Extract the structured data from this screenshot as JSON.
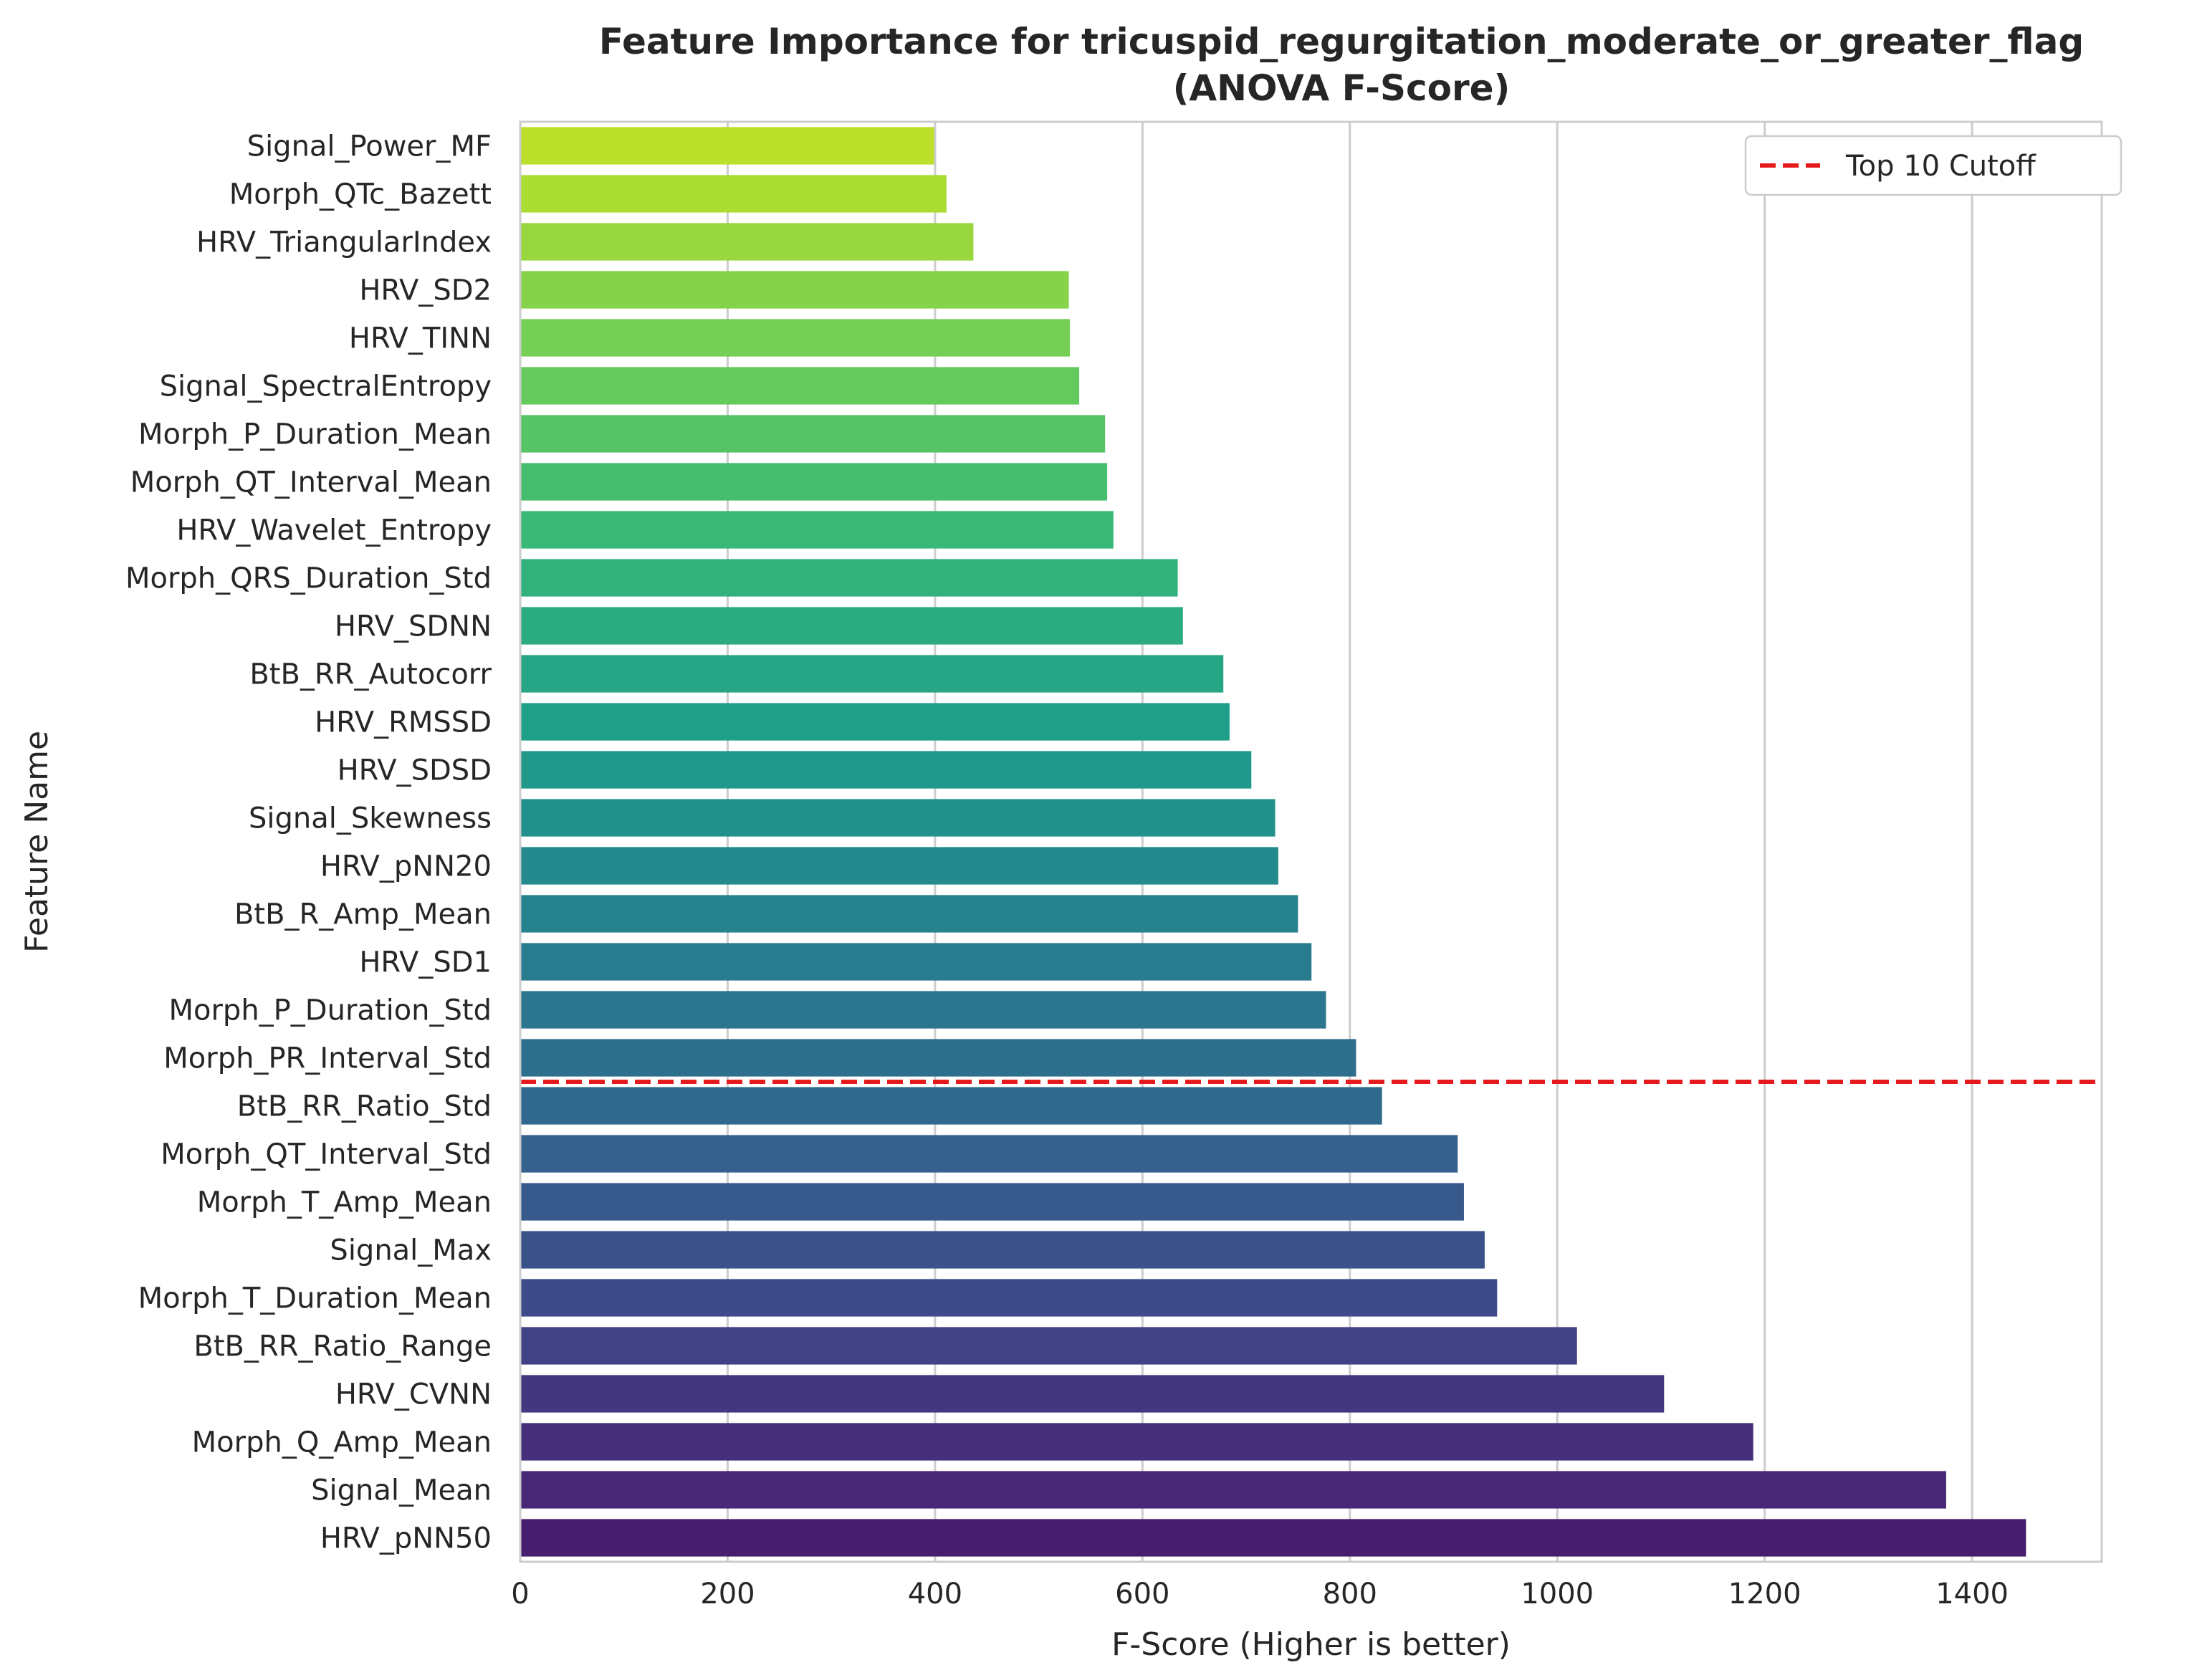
{
  "chart_data": {
    "type": "bar",
    "orientation": "horizontal",
    "title": "Feature Importance for tricuspid_regurgitation_moderate_or_greater_flag",
    "subtitle": "(ANOVA F-Score)",
    "xlabel": "F-Score (Higher is better)",
    "ylabel": "Feature Name",
    "xlim": [
      0,
      1525
    ],
    "xticks": [
      0,
      200,
      400,
      600,
      800,
      1000,
      1200,
      1400
    ],
    "grid": "x",
    "legend": {
      "position": "top-right",
      "entries": [
        "Top 10 Cutoff"
      ]
    },
    "colormap": "viridis",
    "cutoff_line": {
      "label": "Top 10 Cutoff",
      "color": "#e41a1c",
      "between": [
        "Morph_PR_Interval_Std",
        "BtB_RR_Ratio_Std"
      ]
    },
    "categories": [
      "Signal_Power_MF",
      "Morph_QTc_Bazett",
      "HRV_TriangularIndex",
      "HRV_SD2",
      "HRV_TINN",
      "Signal_SpectralEntropy",
      "Morph_P_Duration_Mean",
      "Morph_QT_Interval_Mean",
      "HRV_Wavelet_Entropy",
      "Morph_QRS_Duration_Std",
      "HRV_SDNN",
      "BtB_RR_Autocorr",
      "HRV_RMSSD",
      "HRV_SDSD",
      "Signal_Skewness",
      "HRV_pNN20",
      "BtB_R_Amp_Mean",
      "HRV_SD1",
      "Morph_P_Duration_Std",
      "Morph_PR_Interval_Std",
      "BtB_RR_Ratio_Std",
      "Morph_QT_Interval_Std",
      "Morph_T_Amp_Mean",
      "Signal_Max",
      "Morph_T_Duration_Mean",
      "BtB_RR_Ratio_Range",
      "HRV_CVNN",
      "Morph_Q_Amp_Mean",
      "Signal_Mean",
      "HRV_pNN50"
    ],
    "values": [
      399,
      411,
      437,
      529,
      530,
      539,
      564,
      566,
      572,
      634,
      639,
      678,
      684,
      705,
      728,
      731,
      750,
      763,
      777,
      806,
      831,
      904,
      910,
      930,
      942,
      1019,
      1103,
      1189,
      1375,
      1452
    ]
  }
}
